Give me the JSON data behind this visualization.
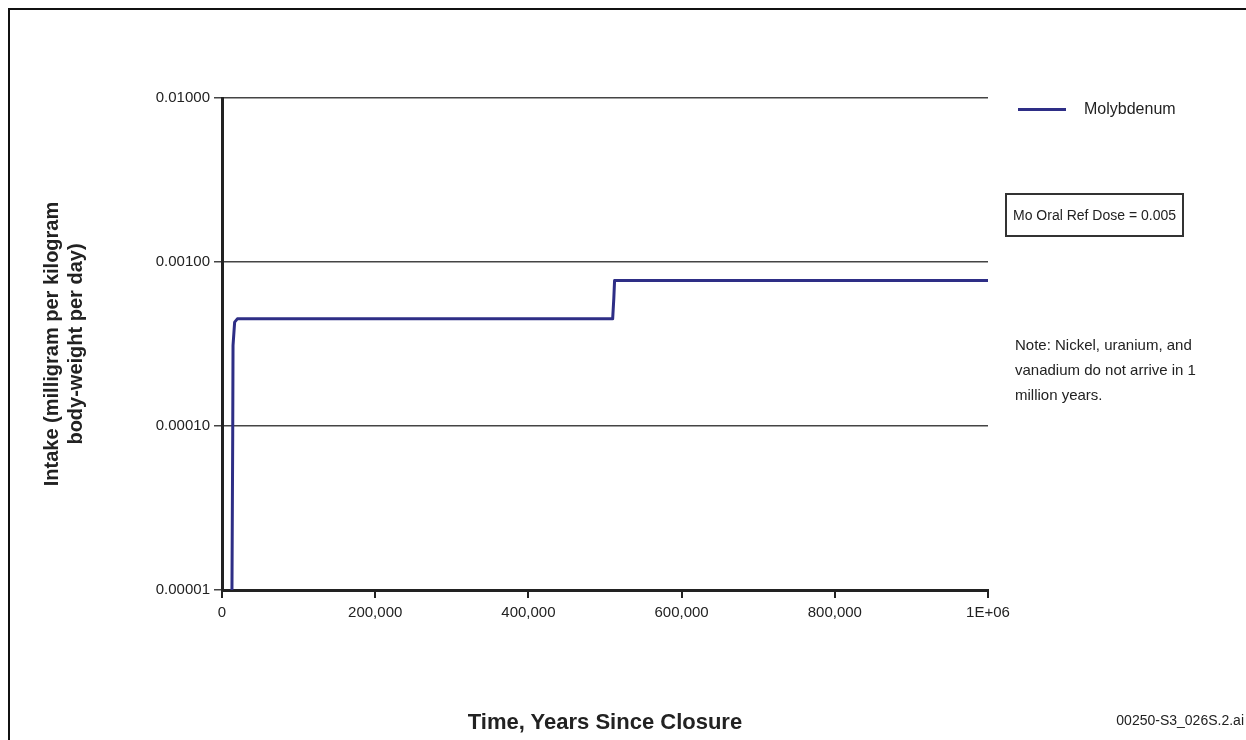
{
  "chart_data": {
    "type": "line",
    "xlabel": "Time, Years Since Closure",
    "ylabel": "Intake (milligram per kilogram body-weight per day)",
    "series": [
      {
        "name": "Molybdenum",
        "color": "#2e2e86",
        "x": [
          13000,
          14000,
          14400,
          16500,
          20000,
          510000,
          511500,
          512500,
          1000000
        ],
        "values": [
          1e-05,
          9e-05,
          0.00031,
          0.00043,
          0.00045,
          0.00045,
          0.0006,
          0.00077,
          0.00077
        ]
      }
    ],
    "log": true,
    "xlim": [
      0,
      1000000
    ],
    "xticks": [
      0,
      {
        "value": 200000,
        "label": "200,000"
      },
      {
        "value": 400000,
        "label": "400,000"
      },
      {
        "value": 600000,
        "label": "600,000"
      },
      {
        "value": 800000,
        "label": "800,000"
      },
      {
        "value": 1000000,
        "label": "1E+06"
      }
    ],
    "ylim": [
      1e-05,
      0.01
    ],
    "yticks": [
      {
        "value": 1e-05,
        "label": "0.00001"
      },
      {
        "value": 0.0001,
        "label": "0.00010"
      },
      {
        "value": 0.001,
        "label": "0.00100"
      },
      {
        "value": 0.01,
        "label": "0.01000"
      }
    ],
    "grid": "y",
    "legend": "top right",
    "marker": "none",
    "line_style": "solid",
    "annotations": [
      "Mo Oral Ref Dose = 0.005",
      "Note:  Nickel, uranium, and vanadium do not arrive in 1 million years.",
      "00250-S3_026S.2.ai"
    ]
  }
}
